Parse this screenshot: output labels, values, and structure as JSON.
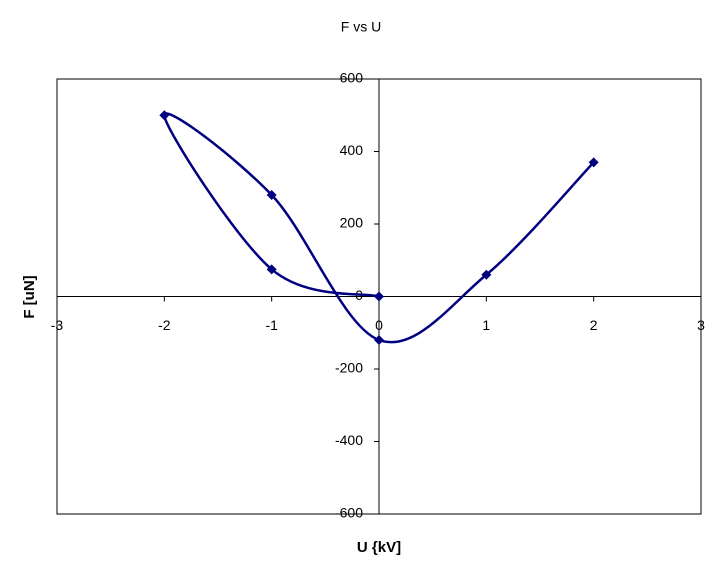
{
  "chart_data": {
    "type": "scatter",
    "title": "F vs U",
    "x_label": "U {kV]",
    "y_label": "F [uN]",
    "x": [
      2,
      1,
      0,
      -1,
      -2,
      -1,
      0
    ],
    "values": [
      370,
      60,
      -120,
      280,
      500,
      75,
      0
    ],
    "color": "#000080",
    "smooth": true,
    "marker": "diamond",
    "xlim": [
      -3,
      3
    ],
    "xticks": [
      -3,
      -2,
      -1,
      0,
      1,
      2,
      3
    ],
    "ylim": [
      -600,
      600
    ],
    "yticks": [
      -600,
      -400,
      -200,
      0,
      200,
      400,
      600
    ],
    "grid": false
  }
}
